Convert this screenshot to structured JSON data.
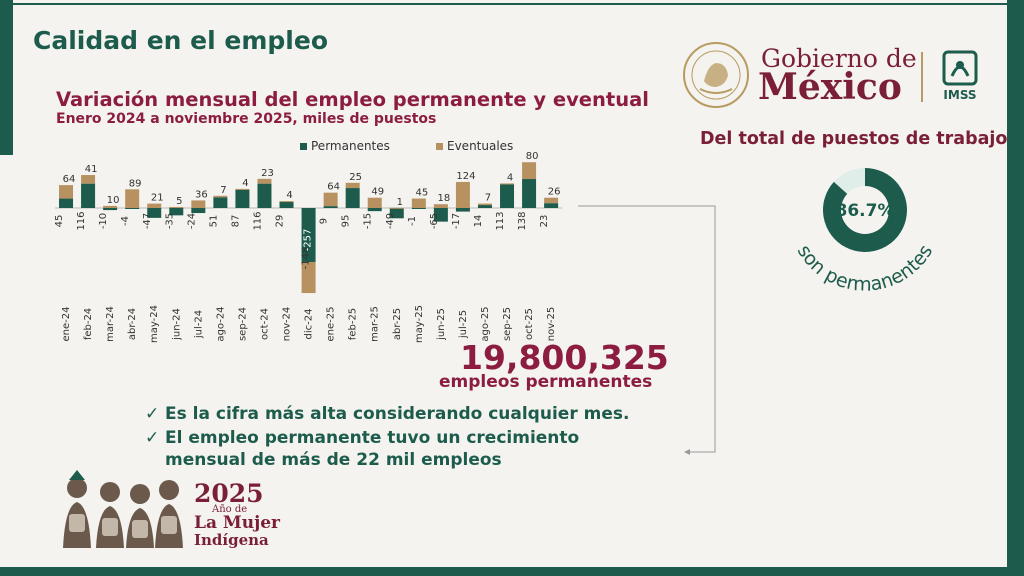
{
  "page": {
    "title": "Calidad en el empleo"
  },
  "logos": {
    "gov_line1": "Gobierno de",
    "gov_line2": "México",
    "imss": "IMSS",
    "seal_text": "ESTADOS UNIDOS MEXICANOS"
  },
  "colors": {
    "permanent": "#1d5c4d",
    "eventual": "#b89161",
    "accent": "#8c1d40",
    "donut_light": "#dfeee8"
  },
  "donut": {
    "title": "Del total de puestos de trabajo",
    "value_label": "86.7%",
    "percent": 86.7,
    "caption": "son permanentes"
  },
  "chart_data": {
    "type": "bar",
    "title": "Variación mensual del empleo permanente y eventual",
    "subtitle": "Enero 2024 a noviembre 2025, miles de puestos",
    "legend_position": "top",
    "categories": [
      "ene-24",
      "feb-24",
      "mar-24",
      "abr-24",
      "may-24",
      "jun-24",
      "jul-24",
      "ago-24",
      "sep-24",
      "oct-24",
      "nov-24",
      "dic-24",
      "ene-25",
      "feb-25",
      "mar-25",
      "abr-25",
      "may-25",
      "jun-25",
      "jul-25",
      "ago-25",
      "sep-25",
      "oct-25",
      "nov-25"
    ],
    "series": [
      {
        "name": "Permanentes",
        "values": [
          45,
          116,
          -10,
          -4,
          -47,
          -35,
          -24,
          51,
          87,
          116,
          29,
          -257,
          9,
          95,
          -15,
          -49,
          -1,
          -65,
          -17,
          14,
          113,
          138,
          23
        ]
      },
      {
        "name": "Eventuales",
        "values": [
          64,
          41,
          10,
          89,
          21,
          5,
          36,
          7,
          4,
          23,
          4,
          -148,
          64,
          25,
          49,
          1,
          45,
          18,
          124,
          7,
          4,
          80,
          26
        ]
      }
    ],
    "ylim": [
      -300,
      160
    ]
  },
  "highlight": {
    "number": "19,800,325",
    "caption": "empleos permanentes",
    "check": "✓",
    "bullets": [
      "Es la cifra más alta considerando cualquier mes.",
      "El  empleo permanente tuvo un crecimiento",
      "mensual de más de 22 mil empleos"
    ]
  },
  "footer": {
    "year": "2025",
    "line1": "Año de",
    "line2": "La Mujer",
    "line3": "Indígena"
  }
}
